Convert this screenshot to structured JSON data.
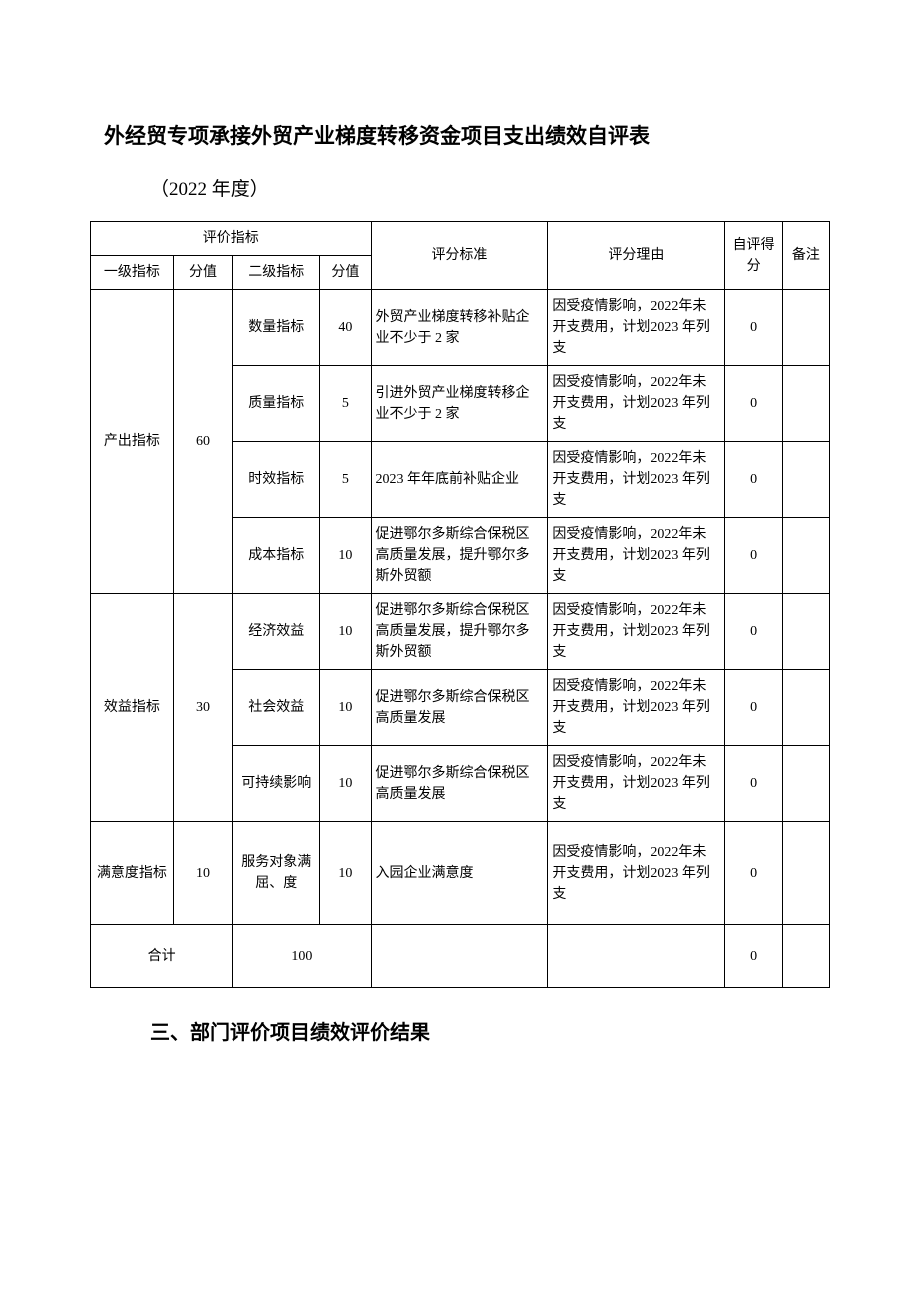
{
  "title": "外经贸专项承接外贸产业梯度转移资金项目支出绩效自评表",
  "year_line": "（2022 年度）",
  "header": {
    "eval_indicator": "评价指标",
    "standard": "评分标准",
    "reason": "评分理由",
    "self_score": "自评得分",
    "remark": "备注",
    "level1": "一级指标",
    "score1": "分值",
    "level2": "二级指标",
    "score2": "分值"
  },
  "groups": [
    {
      "level1": "产出指标",
      "score1": "60",
      "rows": [
        {
          "level2": "数量指标",
          "score2": "40",
          "standard": "外贸产业梯度转移补贴企业不少于 2 家",
          "reason": "因受疫情影响，2022年未开支费用，计划2023 年列支",
          "self_score": "0",
          "remark": ""
        },
        {
          "level2": "质量指标",
          "score2": "5",
          "standard": "引进外贸产业梯度转移企业不少于 2 家",
          "reason": "因受疫情影响，2022年未开支费用，计划2023 年列支",
          "self_score": "0",
          "remark": ""
        },
        {
          "level2": "时效指标",
          "score2": "5",
          "standard": "2023 年年底前补贴企业",
          "reason": "因受疫情影响，2022年未开支费用，计划2023 年列支",
          "self_score": "0",
          "remark": ""
        },
        {
          "level2": "成本指标",
          "score2": "10",
          "standard": "促进鄂尔多斯综合保税区高质量发展，提升鄂尔多斯外贸额",
          "reason": "因受疫情影响，2022年未开支费用，计划2023 年列支",
          "self_score": "0",
          "remark": ""
        }
      ]
    },
    {
      "level1": "效益指标",
      "score1": "30",
      "rows": [
        {
          "level2": "经济效益",
          "score2": "10",
          "standard": "促进鄂尔多斯综合保税区高质量发展，提升鄂尔多斯外贸额",
          "reason": "因受疫情影响，2022年未开支费用，计划2023 年列支",
          "self_score": "0",
          "remark": ""
        },
        {
          "level2": "社会效益",
          "score2": "10",
          "standard": "促进鄂尔多斯综合保税区高质量发展",
          "reason": "因受疫情影响，2022年未开支费用，计划2023 年列支",
          "self_score": "0",
          "remark": ""
        },
        {
          "level2": "可持续影响",
          "score2": "10",
          "standard": "促进鄂尔多斯综合保税区高质量发展",
          "reason": "因受疫情影响，2022年未开支费用，计划2023 年列支",
          "self_score": "0",
          "remark": ""
        }
      ]
    },
    {
      "level1": "满意度指标",
      "score1": "10",
      "rows": [
        {
          "level2": "服务对象满屈、度",
          "score2": "10",
          "standard": "入园企业满意度",
          "reason": "因受疫情影响，2022年未开支费用，计划2023 年列支",
          "self_score": "0",
          "remark": ""
        }
      ]
    }
  ],
  "total": {
    "label": "合计",
    "score": "100",
    "standard": "",
    "reason": "",
    "self_score": "0",
    "remark": ""
  },
  "section_heading": "三、部门评价项目绩效评价结果"
}
